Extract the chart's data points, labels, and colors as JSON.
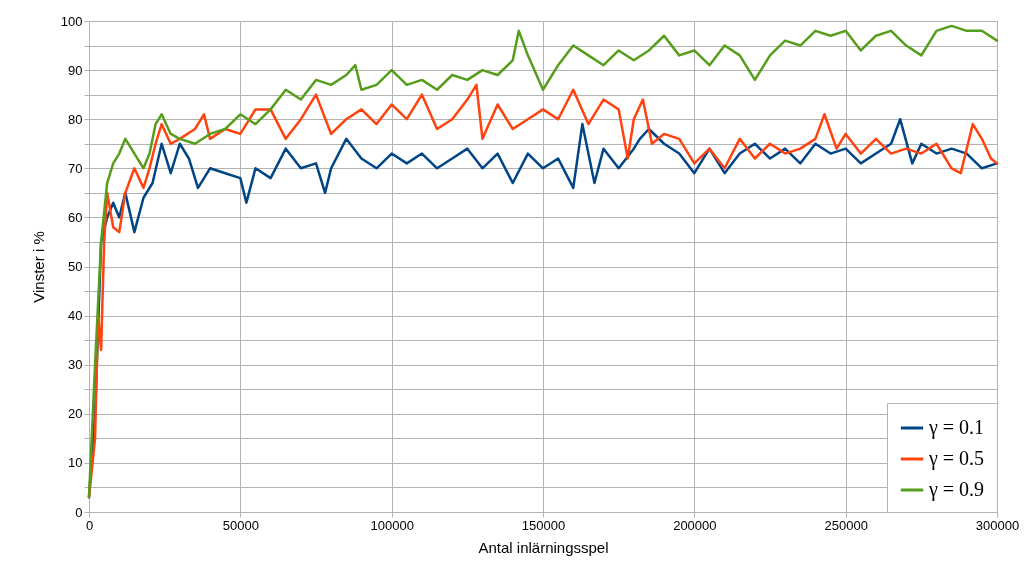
{
  "chart_data": {
    "type": "line",
    "xlabel": "Antal inlärningsspel",
    "ylabel": "Vinster i %",
    "xlim": [
      0,
      300000
    ],
    "xticks": [
      0,
      50000,
      100000,
      150000,
      200000,
      250000,
      300000
    ],
    "ylim": [
      0,
      100
    ],
    "yticks": [
      0,
      {
        "value": 5,
        "label": null
      },
      10,
      {
        "value": 15,
        "label": null
      },
      20,
      {
        "value": 25,
        "label": null
      },
      30,
      {
        "value": 35,
        "label": null
      },
      40,
      {
        "value": 45,
        "label": null
      },
      50,
      {
        "value": 55,
        "label": null
      },
      60,
      {
        "value": 65,
        "label": null
      },
      70,
      {
        "value": 75,
        "label": null
      },
      80,
      {
        "value": 85,
        "label": null
      },
      90,
      {
        "value": 95,
        "label": null
      },
      100
    ],
    "grid": true,
    "legend": "bottom right",
    "marker": "none",
    "line_style": "solid",
    "series": [
      {
        "name": "γ = 0.1",
        "color": "#004586",
        "x": [
          0,
          2000,
          4000,
          6000,
          8000,
          10000,
          12000,
          15000,
          18000,
          21000,
          24000,
          27000,
          30000,
          33000,
          36000,
          40000,
          45000,
          50000,
          52000,
          55000,
          60000,
          65000,
          70000,
          75000,
          78000,
          80000,
          85000,
          90000,
          95000,
          100000,
          105000,
          110000,
          115000,
          120000,
          125000,
          130000,
          135000,
          140000,
          145000,
          150000,
          155000,
          160000,
          163000,
          167000,
          170000,
          175000,
          180000,
          182000,
          185000,
          190000,
          195000,
          200000,
          205000,
          210000,
          215000,
          220000,
          225000,
          230000,
          235000,
          240000,
          245000,
          250000,
          255000,
          260000,
          265000,
          268000,
          272000,
          275000,
          280000,
          285000,
          290000,
          295000,
          300000
        ],
        "values": [
          3,
          20,
          55,
          60,
          63,
          60,
          65,
          57,
          64,
          67,
          75,
          69,
          75,
          72,
          66,
          70,
          69,
          68,
          63,
          70,
          68,
          74,
          70,
          71,
          65,
          70,
          76,
          72,
          70,
          73,
          71,
          73,
          70,
          72,
          74,
          70,
          73,
          67,
          73,
          70,
          72,
          66,
          79,
          67,
          74,
          70,
          74,
          76,
          78,
          75,
          73,
          69,
          74,
          69,
          73,
          75,
          72,
          74,
          71,
          75,
          73,
          74,
          71,
          73,
          75,
          80,
          71,
          75,
          73,
          74,
          73,
          70,
          71
        ]
      },
      {
        "name": "γ = 0.5",
        "color": "#ff420e",
        "x": [
          0,
          2000,
          3000,
          4000,
          5000,
          6000,
          8000,
          10000,
          12000,
          15000,
          18000,
          20000,
          22000,
          24000,
          27000,
          30000,
          35000,
          38000,
          40000,
          45000,
          50000,
          55000,
          60000,
          65000,
          70000,
          75000,
          80000,
          85000,
          90000,
          95000,
          100000,
          105000,
          110000,
          115000,
          120000,
          125000,
          128000,
          130000,
          135000,
          140000,
          145000,
          150000,
          155000,
          160000,
          165000,
          170000,
          175000,
          178000,
          180000,
          183000,
          186000,
          190000,
          195000,
          200000,
          205000,
          210000,
          215000,
          220000,
          225000,
          230000,
          235000,
          240000,
          243000,
          247000,
          250000,
          255000,
          260000,
          265000,
          270000,
          275000,
          280000,
          285000,
          288000,
          292000,
          295000,
          298000,
          300000
        ],
        "values": [
          3,
          15,
          40,
          33,
          55,
          65,
          58,
          57,
          65,
          70,
          66,
          70,
          75,
          79,
          75,
          76,
          78,
          81,
          76,
          78,
          77,
          82,
          82,
          76,
          80,
          85,
          77,
          80,
          82,
          79,
          83,
          80,
          85,
          78,
          80,
          84,
          87,
          76,
          83,
          78,
          80,
          82,
          80,
          86,
          79,
          84,
          82,
          72,
          80,
          84,
          75,
          77,
          76,
          71,
          74,
          70,
          76,
          72,
          75,
          73,
          74,
          76,
          81,
          74,
          77,
          73,
          76,
          73,
          74,
          73,
          75,
          70,
          69,
          79,
          76,
          72,
          71
        ]
      },
      {
        "name": "γ = 0.9",
        "color": "#579d1c",
        "x": [
          0,
          2000,
          4000,
          6000,
          8000,
          10000,
          12000,
          15000,
          18000,
          20000,
          22000,
          24000,
          27000,
          30000,
          35000,
          40000,
          45000,
          50000,
          55000,
          60000,
          65000,
          70000,
          75000,
          80000,
          85000,
          88000,
          90000,
          95000,
          100000,
          105000,
          110000,
          115000,
          120000,
          125000,
          130000,
          135000,
          140000,
          142000,
          145000,
          150000,
          155000,
          160000,
          165000,
          170000,
          175000,
          180000,
          185000,
          190000,
          195000,
          200000,
          205000,
          210000,
          215000,
          220000,
          225000,
          230000,
          235000,
          240000,
          245000,
          250000,
          255000,
          260000,
          265000,
          270000,
          275000,
          280000,
          285000,
          290000,
          295000,
          300000
        ],
        "values": [
          3,
          30,
          55,
          67,
          71,
          73,
          76,
          73,
          70,
          73,
          79,
          81,
          77,
          76,
          75,
          77,
          78,
          81,
          79,
          82,
          86,
          84,
          88,
          87,
          89,
          91,
          86,
          87,
          90,
          87,
          88,
          86,
          89,
          88,
          90,
          89,
          92,
          98,
          93,
          86,
          91,
          95,
          93,
          91,
          94,
          92,
          94,
          97,
          93,
          94,
          91,
          95,
          93,
          88,
          93,
          96,
          95,
          98,
          97,
          98,
          94,
          97,
          98,
          95,
          93,
          98,
          99,
          98,
          98,
          96
        ]
      }
    ]
  }
}
